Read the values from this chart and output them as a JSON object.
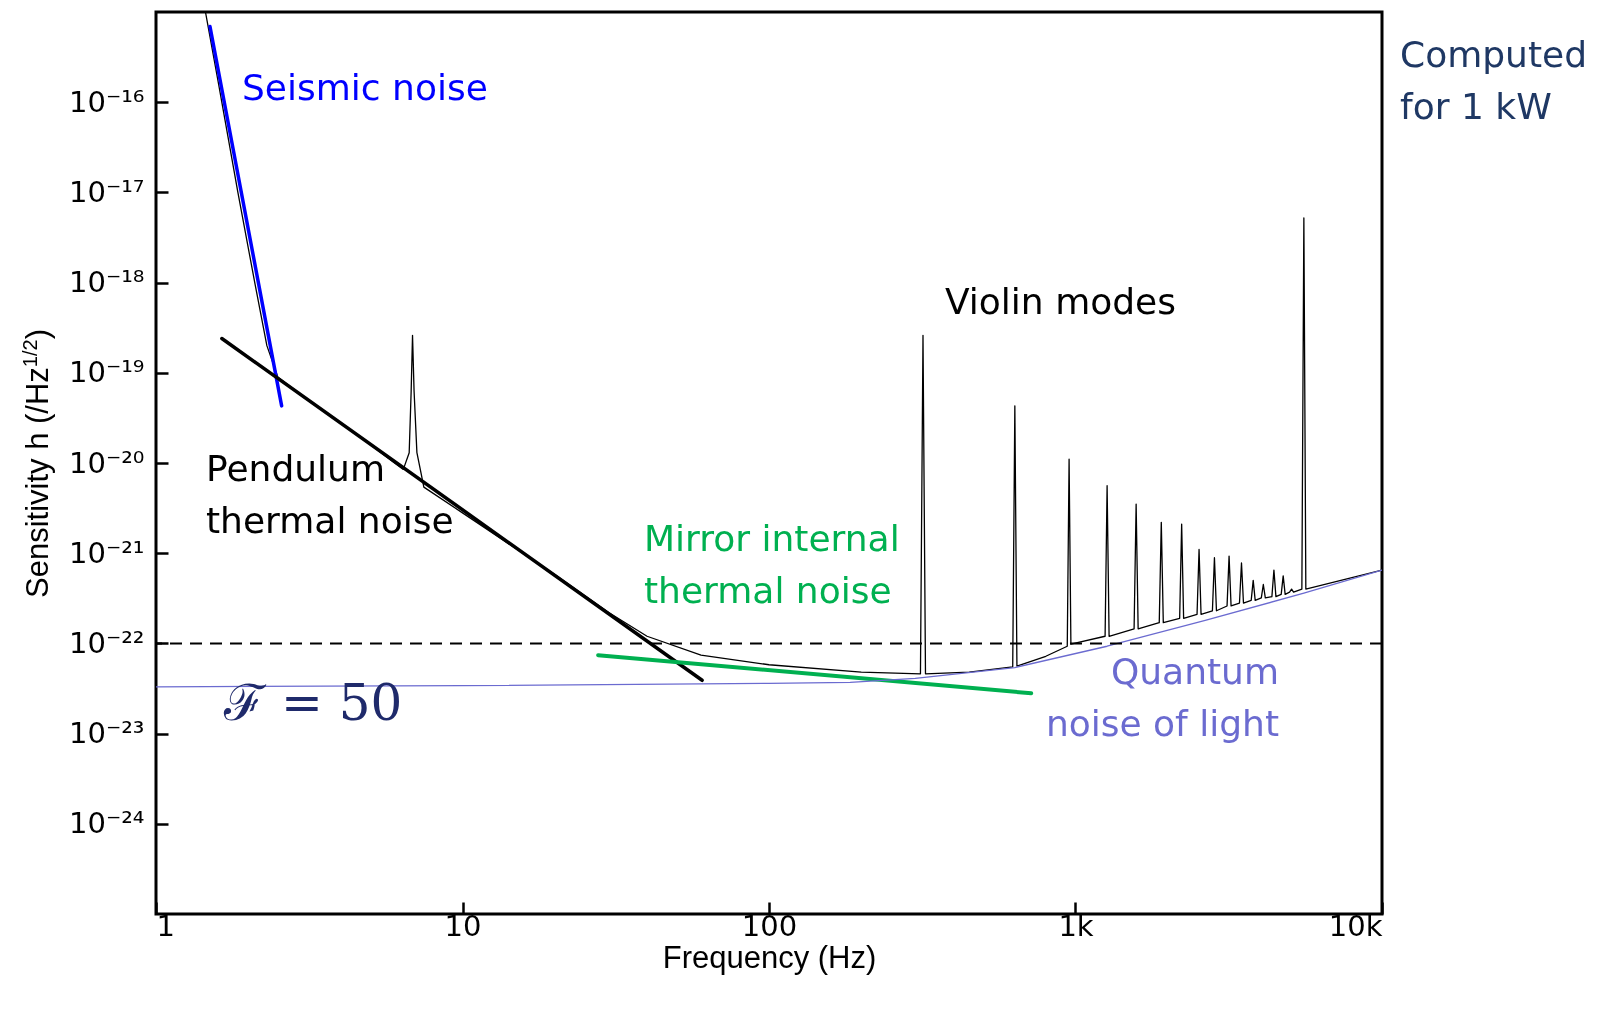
{
  "chart_data": {
    "type": "line",
    "xlabel": "Frequency (Hz)",
    "ylabel": "Sensitivity h (/Hz$^{1/2}$)",
    "log": "xy",
    "xlim": [
      1,
      10000
    ],
    "ylim": [
      1e-25,
      1e-15
    ],
    "xticks": [
      1,
      10,
      100,
      {
        "value": 1000,
        "label": "1k"
      },
      {
        "value": 10000,
        "label": "10k"
      }
    ],
    "yticks": [
      {
        "value": 1e-16,
        "label": "10⁻¹⁶"
      },
      {
        "value": 1e-17,
        "label": "10⁻¹⁷"
      },
      {
        "value": 1e-18,
        "label": "10⁻¹⁸"
      },
      {
        "value": 1e-19,
        "label": "10⁻¹⁹"
      },
      {
        "value": 1e-20,
        "label": "10⁻²⁰"
      },
      {
        "value": 1e-21,
        "label": "10⁻²¹"
      },
      {
        "value": 1e-22,
        "label": "10⁻²²"
      },
      {
        "value": 1e-23,
        "label": "10⁻²³"
      },
      {
        "value": 1e-24,
        "label": "10⁻²⁴"
      }
    ],
    "series": [
      {
        "color": "#000000",
        "x": [
          1.45,
          1.6,
          1.85,
          2.1,
          2.3,
          2.5,
          3,
          4,
          5,
          6,
          6.41,
          6.7,
          6.8,
          6.87,
          6.95,
          7.1,
          7.48,
          10,
          20,
          30,
          40,
          60,
          100,
          200,
          312,
          318,
          324,
          450,
          624,
          634,
          644,
          800,
          940,
          953,
          966,
          1249,
          1268,
          1287,
          1553,
          1577,
          1601,
          1876,
          1905,
          1934,
          2187,
          2220,
          2253,
          2492,
          2530,
          2568,
          2797,
          2840,
          2883,
          3122,
          3170,
          3218,
          3428,
          3480,
          3532,
          3743,
          3800,
          3857,
          4039,
          4100,
          4162,
          4373,
          4440,
          4507,
          4689,
          4760,
          4831,
          4994,
          5070,
          5146,
          5477,
          5560,
          5643,
          10000
        ],
        "values": [
          1e-15,
          1.6e-16,
          1e-17,
          1e-18,
          2e-19,
          8.9e-20,
          5.6e-20,
          2.8e-20,
          1.6e-20,
          1e-20,
          8.5e-21,
          1.3e-20,
          6.3e-20,
          2.6e-19,
          6.3e-20,
          1.3e-20,
          5.4e-21,
          2.8e-21,
          5.8e-22,
          2.2e-22,
          1.2e-22,
          7.4e-23,
          5.8e-23,
          4.8e-23,
          4.6e-23,
          2.6e-19,
          4.6e-23,
          4.8e-23,
          5.5e-23,
          4.3e-20,
          5.6e-23,
          7.2e-23,
          9.3e-23,
          1.1e-20,
          9.8e-23,
          1.2e-22,
          5.6e-21,
          1.2e-22,
          1.45e-22,
          3.5e-21,
          1.45e-22,
          1.7e-22,
          2.2e-21,
          1.7e-22,
          1.9e-22,
          2.1e-21,
          1.9e-22,
          2.1e-22,
          1.1e-21,
          2.1e-22,
          2.3e-22,
          8.9e-22,
          2.3e-22,
          2.6e-22,
          9.3e-22,
          2.6e-22,
          2.8e-22,
          7.8e-22,
          2.8e-22,
          3e-22,
          5e-22,
          3e-22,
          3.2e-22,
          4.5e-22,
          3.2e-22,
          3.3e-22,
          6.5e-22,
          3.3e-22,
          3.5e-22,
          5.6e-22,
          3.5e-22,
          3.7e-22,
          4e-22,
          3.7e-22,
          4e-22,
          5.2e-18,
          4e-22,
          6.5e-22
        ]
      },
      {
        "name": "Seismic noise",
        "color": "#0000ff",
        "x": [
          1.5,
          2.57
        ],
        "values": [
          6.9e-16,
          4.3e-20
        ]
      },
      {
        "name": "Pendulum thermal noise",
        "color": "#000000",
        "x": [
          1.64,
          60.5
        ],
        "values": [
          2.4e-19,
          3.9e-23
        ]
      },
      {
        "name": "Mirror internal thermal noise",
        "color": "#00b050",
        "x": [
          27.7,
          717
        ],
        "values": [
          7.4e-23,
          2.8e-23
        ]
      },
      {
        "name": "Quantum noise of light",
        "color": "#6b6bd0",
        "x": [
          1,
          10,
          100,
          184,
          300,
          634,
          1268,
          2650,
          5560,
          10000
        ],
        "values": [
          3.3e-23,
          3.4e-23,
          3.6e-23,
          3.7e-23,
          4.1e-23,
          5.4e-23,
          9.3e-23,
          1.8e-22,
          3.6e-22,
          6.5e-22
        ]
      }
    ],
    "ref_lines": [
      {
        "axis": "y",
        "value": 1e-22,
        "color": "#000000",
        "line_style": "dashed"
      }
    ],
    "annotations": [
      "Violin modes",
      "ℱ = 50",
      "Computed for 1 kW"
    ]
  }
}
